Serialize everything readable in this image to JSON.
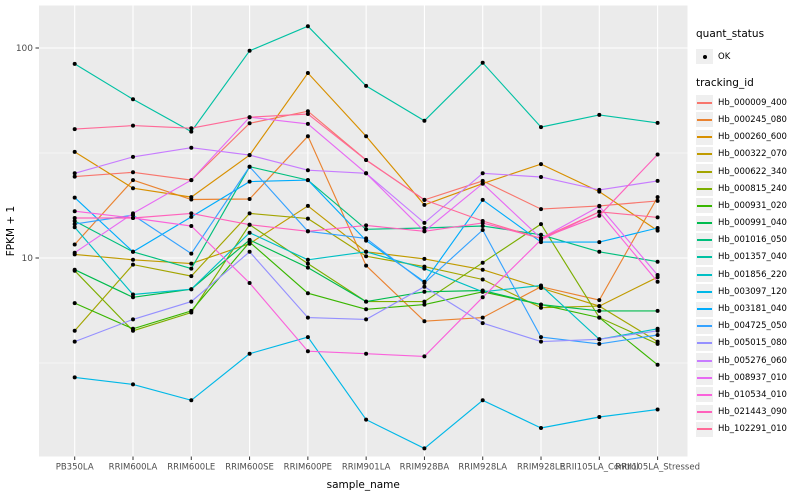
{
  "figure": {
    "background": "#FFFFFF",
    "panel_background": "#EBEBEB",
    "grid_color": "#FFFFFF",
    "tick_label_color": "#4D4D4D",
    "point_color": "#000000"
  },
  "legend": {
    "quant_status_title": "quant_status",
    "quant_status_items": [
      {
        "label": "OK",
        "marker": "black-dot"
      }
    ],
    "tracking_id_title": "tracking_id"
  },
  "chart_data": {
    "type": "line",
    "title": "",
    "xlabel": "sample_name",
    "ylabel": "FPKM + 1",
    "y_scale": "log10",
    "y_ticks": [
      100,
      10
    ],
    "y_minor_gridlines": [
      31.62,
      3.162
    ],
    "ylim": [
      1.1,
      140
    ],
    "grid": true,
    "legend_position": "right",
    "categories": [
      "PB350LA",
      "RRIM600LA",
      "RRIM600LE",
      "RRIM600SE",
      "RRIM600PE",
      "RRIM901LA",
      "RRIM928BA",
      "RRIM928LA",
      "RRIM928LE",
      "RRII105LA_Control",
      "RRII105LA_Stressed"
    ],
    "series": [
      {
        "name": "Hb_000009_400",
        "color": "#F8766D",
        "values": [
          24.4,
          25.6,
          23.5,
          43.8,
          50,
          29.3,
          18.9,
          23.3,
          17.1,
          17.7,
          18.7
        ]
      },
      {
        "name": "Hb_000245_080",
        "color": "#EA8331",
        "values": [
          11.6,
          23.5,
          19.0,
          19.1,
          38.0,
          9.2,
          5.0,
          5.2,
          7.3,
          6.3,
          19.5
        ]
      },
      {
        "name": "Hb_000260_600",
        "color": "#D89000",
        "values": [
          32.0,
          21.5,
          19.5,
          30.9,
          76.0,
          38.0,
          17.9,
          22.6,
          28.0,
          20.7,
          13.5
        ]
      },
      {
        "name": "Hb_000322_070",
        "color": "#C09B00",
        "values": [
          10.4,
          9.8,
          9.4,
          11.7,
          17.7,
          10.7,
          9.9,
          8.8,
          7.2,
          5.9,
          8.1
        ]
      },
      {
        "name": "Hb_000622_340",
        "color": "#A3A500",
        "values": [
          4.5,
          9.3,
          8.2,
          16.3,
          15.4,
          10.2,
          9.1,
          7.9,
          5.8,
          5.9,
          4.0
        ]
      },
      {
        "name": "Hb_000815_240",
        "color": "#7CAE00",
        "values": [
          8.7,
          4.5,
          5.5,
          14.4,
          9.4,
          6.2,
          6.2,
          9.5,
          14.5,
          5.2,
          3.9
        ]
      },
      {
        "name": "Hb_000931_020",
        "color": "#39B600",
        "values": [
          6.1,
          4.6,
          5.6,
          11.9,
          6.8,
          5.7,
          6.0,
          6.9,
          6.0,
          5.2,
          3.1
        ]
      },
      {
        "name": "Hb_000991_040",
        "color": "#00BB4E",
        "values": [
          8.8,
          6.5,
          7.1,
          12.2,
          9.0,
          6.2,
          6.9,
          7.0,
          6.0,
          5.6,
          5.6
        ]
      },
      {
        "name": "Hb_001016_050",
        "color": "#00BF7D",
        "values": [
          15.0,
          10.7,
          8.9,
          27.2,
          23.5,
          13.7,
          13.9,
          14.2,
          12.9,
          10.7,
          9.6
        ]
      },
      {
        "name": "Hb_001357_040",
        "color": "#00C1A3",
        "values": [
          84,
          57,
          40,
          97,
          127,
          66,
          45,
          85,
          42,
          48,
          44
        ]
      },
      {
        "name": "Hb_001856_220",
        "color": "#00BFC4",
        "values": [
          14.0,
          6.7,
          7.1,
          13.2,
          9.8,
          10.7,
          8.9,
          6.9,
          7.4,
          4.1,
          4.6
        ]
      },
      {
        "name": "Hb_003097_120",
        "color": "#00B8E7",
        "values": [
          2.7,
          2.5,
          2.1,
          3.5,
          4.2,
          1.7,
          1.24,
          2.1,
          1.55,
          1.75,
          1.9
        ]
      },
      {
        "name": "Hb_003181_040",
        "color": "#00ACFC",
        "values": [
          19.4,
          10.7,
          15.7,
          23.1,
          23.5,
          12.1,
          7.7,
          18.9,
          11.9,
          11.9,
          13.9
        ]
      },
      {
        "name": "Hb_004725_050",
        "color": "#35A2FF",
        "values": [
          14.5,
          16.0,
          10.5,
          27.2,
          13.4,
          12.4,
          7.6,
          13.6,
          4.2,
          3.9,
          4.3
        ]
      },
      {
        "name": "Hb_005015_080",
        "color": "#9590FF",
        "values": [
          4.0,
          5.1,
          6.2,
          10.7,
          5.2,
          5.1,
          7.3,
          4.9,
          4.0,
          4.1,
          4.5
        ]
      },
      {
        "name": "Hb_005276_060",
        "color": "#C77CFF",
        "values": [
          25.3,
          30.3,
          33.5,
          30.9,
          26.2,
          25.3,
          14.7,
          25.3,
          24.3,
          21.1,
          23.3
        ]
      },
      {
        "name": "Hb_008937_010",
        "color": "#E76BF3",
        "values": [
          10.6,
          16.3,
          23.5,
          46.8,
          43.5,
          25.3,
          13.4,
          22.6,
          12.4,
          17.6,
          8.3
        ]
      },
      {
        "name": "Hb_010534_010",
        "color": "#FA62DB",
        "values": [
          16.7,
          15.5,
          14.2,
          7.6,
          3.6,
          3.5,
          3.4,
          6.5,
          12.2,
          16.6,
          7.7
        ]
      },
      {
        "name": "Hb_021443_090",
        "color": "#FF62BC",
        "values": [
          15.5,
          15.5,
          16.3,
          14.4,
          13.4,
          14.3,
          13.4,
          14.7,
          12.4,
          15.9,
          31.1
        ]
      },
      {
        "name": "Hb_102291_010",
        "color": "#FF6A98",
        "values": [
          41.1,
          42.7,
          41.5,
          46.8,
          48.5,
          29.3,
          18.9,
          15.0,
          12.4,
          16.6,
          15.6
        ]
      }
    ]
  }
}
